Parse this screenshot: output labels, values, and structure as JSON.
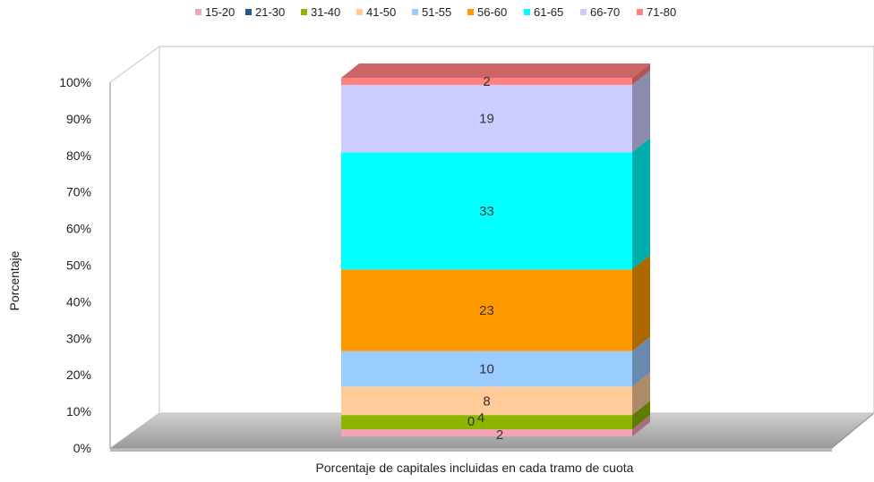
{
  "chart_data": {
    "type": "bar",
    "stacked": true,
    "percent_stacked": true,
    "three_d": true,
    "categories": [
      ""
    ],
    "series": [
      {
        "name": "15-20",
        "color": "#F4A3B8",
        "values": [
          2
        ]
      },
      {
        "name": "21-30",
        "color": "#1F5B8C",
        "values": [
          0
        ]
      },
      {
        "name": "31-40",
        "color": "#8DB600",
        "values": [
          4
        ]
      },
      {
        "name": "41-50",
        "color": "#FFCC99",
        "values": [
          8
        ]
      },
      {
        "name": "51-55",
        "color": "#99CCFF",
        "values": [
          10
        ]
      },
      {
        "name": "56-60",
        "color": "#FF9900",
        "values": [
          23
        ]
      },
      {
        "name": "61-65",
        "color": "#00FFFF",
        "values": [
          33
        ]
      },
      {
        "name": "66-70",
        "color": "#CCCCFF",
        "values": [
          19
        ]
      },
      {
        "name": "71-80",
        "color": "#FF8080",
        "values": [
          2
        ]
      }
    ],
    "data_labels": [
      "2",
      "0",
      "4",
      "8",
      "10",
      "23",
      "33",
      "19",
      "2"
    ],
    "xlabel": "Porcentaje de capitales incluidas en cada tramo de cuota",
    "ylabel": "Porcentaje",
    "ylim": [
      0,
      100
    ],
    "yticks": [
      "0%",
      "10%",
      "20%",
      "30%",
      "40%",
      "50%",
      "60%",
      "70%",
      "80%",
      "90%",
      "100%"
    ],
    "legend_position": "top"
  }
}
